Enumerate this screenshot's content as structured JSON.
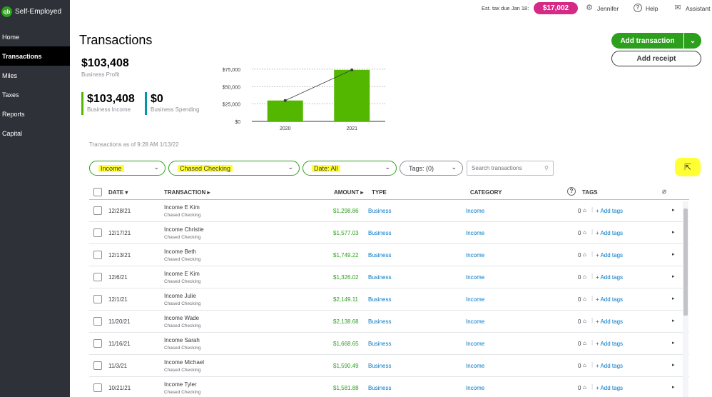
{
  "app": {
    "name": "Self-Employed",
    "logo_text": "qb"
  },
  "sidebar": {
    "items": [
      {
        "label": "Home",
        "active": false
      },
      {
        "label": "Transactions",
        "active": true
      },
      {
        "label": "Miles",
        "active": false
      },
      {
        "label": "Taxes",
        "active": false
      },
      {
        "label": "Reports",
        "active": false
      },
      {
        "label": "Capital",
        "active": false
      }
    ]
  },
  "topbar": {
    "tax_label": "Est. tax due Jan 18:",
    "tax_amount": "$17,002",
    "user_name": "Jennifer",
    "help_label": "Help",
    "assistant_label": "Assistant"
  },
  "page": {
    "title": "Transactions"
  },
  "summary": {
    "profit_value": "$103,408",
    "profit_label": "Business Profit",
    "income_value": "$103,408",
    "income_label": "Business Income",
    "spending_value": "$0",
    "spending_label": "Business Spending",
    "income_color": "#53b700",
    "spending_color": "#0097a7"
  },
  "chart_data": {
    "type": "bar",
    "categories": [
      "2020",
      "2021"
    ],
    "values": [
      30000,
      74000
    ],
    "trend_line": true,
    "y_ticks": [
      "$0",
      "$25,000",
      "$50,000",
      "$75,000"
    ],
    "y_tick_values": [
      0,
      25000,
      50000,
      75000
    ],
    "ylim": [
      0,
      80000
    ],
    "bar_color": "#53b700",
    "grid": "dotted"
  },
  "actions": {
    "add_transaction": "Add transaction",
    "add_receipt": "Add receipt"
  },
  "as_of": "Transactions as of 9:28 AM 1/13/22",
  "filters": {
    "type": "Income",
    "account": "Chased Checking",
    "date": "Date: All",
    "tags": "Tags: (0)",
    "search_placeholder": "Search transactions"
  },
  "table": {
    "headers": {
      "date": "DATE",
      "transaction": "TRANSACTION",
      "amount": "AMOUNT",
      "type": "TYPE",
      "category": "CATEGORY",
      "tags": "TAGS"
    },
    "rows": [
      {
        "date": "12/28/21",
        "name": "Income E Kim",
        "account": "Chased Checking",
        "amount": "$1,298.86",
        "type": "Business",
        "category": "Income",
        "tags": "0",
        "add_tags": "+ Add tags"
      },
      {
        "date": "12/17/21",
        "name": "Income Christie",
        "account": "Chased Checking",
        "amount": "$1,577.03",
        "type": "Business",
        "category": "Income",
        "tags": "0",
        "add_tags": "+ Add tags"
      },
      {
        "date": "12/13/21",
        "name": "Income Beth",
        "account": "Chased Checking",
        "amount": "$1,749.22",
        "type": "Business",
        "category": "Income",
        "tags": "0",
        "add_tags": "+ Add tags"
      },
      {
        "date": "12/6/21",
        "name": "Income E Kim",
        "account": "Chased Checking",
        "amount": "$1,326.02",
        "type": "Business",
        "category": "Income",
        "tags": "0",
        "add_tags": "+ Add tags"
      },
      {
        "date": "12/1/21",
        "name": "Income Julie",
        "account": "Chased Checking",
        "amount": "$2,149.11",
        "type": "Business",
        "category": "Income",
        "tags": "0",
        "add_tags": "+ Add tags"
      },
      {
        "date": "11/20/21",
        "name": "Income Wade",
        "account": "Chased Checking",
        "amount": "$2,138.68",
        "type": "Business",
        "category": "Income",
        "tags": "0",
        "add_tags": "+ Add tags"
      },
      {
        "date": "11/16/21",
        "name": "Income Sarah",
        "account": "Chased Checking",
        "amount": "$1,668.65",
        "type": "Business",
        "category": "Income",
        "tags": "0",
        "add_tags": "+ Add tags"
      },
      {
        "date": "11/3/21",
        "name": "Income Michael",
        "account": "Chased Checking",
        "amount": "$1,590.49",
        "type": "Business",
        "category": "Income",
        "tags": "0",
        "add_tags": "+ Add tags"
      },
      {
        "date": "10/21/21",
        "name": "Income Tyler",
        "account": "Chased Checking",
        "amount": "$1,581.88",
        "type": "Business",
        "category": "Income",
        "tags": "0",
        "add_tags": "+ Add tags"
      }
    ]
  },
  "icons": {
    "settings": "gear-icon",
    "help": "help-icon",
    "assistant": "chat-icon",
    "search": "search-icon",
    "export": "export-icon",
    "attachment": "paperclip-icon",
    "tag": "tag-icon"
  }
}
